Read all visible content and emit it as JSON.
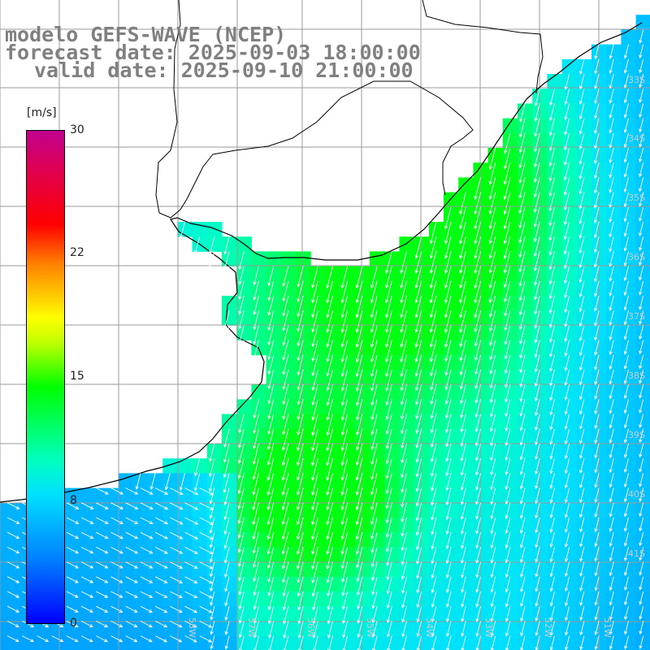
{
  "title": {
    "line1": "modelo GEFS-WAVE (NCEP)",
    "line2": "forecast date: 2025-09-03 18:00:00",
    "line3": "valid date: 2025-09-10 21:00:00"
  },
  "colorbar": {
    "unit": "[m/s]",
    "ticks": [
      "30",
      "22",
      "15",
      "8",
      "0"
    ],
    "range": [
      0,
      30
    ],
    "colors": [
      "#0000ff",
      "#0080ff",
      "#00e0ff",
      "#00ffc0",
      "#00ff00",
      "#c0ff00",
      "#ffff00",
      "#ff8000",
      "#ff0000",
      "#e00050",
      "#c00090"
    ]
  },
  "lat_labels": [
    "33S",
    "34S",
    "35S",
    "36S",
    "37S",
    "38S",
    "39S",
    "40S",
    "41S"
  ],
  "lon_labels": [
    "58W",
    "57W",
    "56W",
    "55W",
    "54W",
    "53W",
    "52W",
    "51W"
  ],
  "map": {
    "land_color": "#ffffff",
    "grid_color": "#9a9a9a",
    "coast_color": "#000000",
    "arrow_color": "#ffffff",
    "wind_direction": "from north / north-east toward south / south-west",
    "max_wind_region": "Rio de la Plata mouth and off Uruguay coast, about 12-13 m/s"
  }
}
